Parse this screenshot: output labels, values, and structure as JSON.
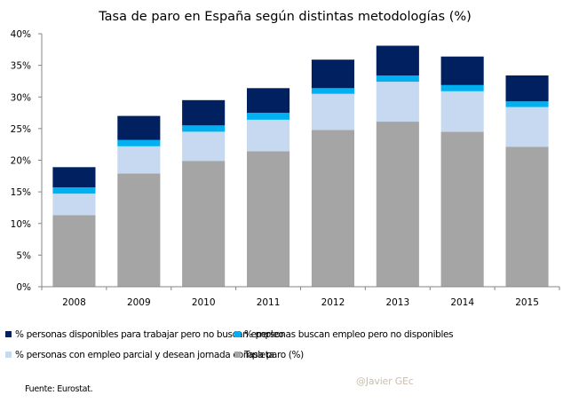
{
  "chart_data": {
    "type": "bar",
    "stacked": true,
    "title": "Tasa de paro en España según distintas metodologías (%)",
    "xlabel": "",
    "ylabel": "",
    "ylim": [
      0,
      40
    ],
    "yticks": [
      "0%",
      "5%",
      "10%",
      "15%",
      "20%",
      "25%",
      "30%",
      "35%",
      "40%"
    ],
    "ytick_values": [
      0,
      5,
      10,
      15,
      20,
      25,
      30,
      35,
      40
    ],
    "grid": false,
    "legend_position": "bottom",
    "categories": [
      "2008",
      "2009",
      "2010",
      "2011",
      "2012",
      "2013",
      "2014",
      "2015"
    ],
    "series": [
      {
        "name": "Tasa paro (%)",
        "color": "#a5a5a5",
        "values": [
          11.3,
          17.9,
          19.9,
          21.4,
          24.8,
          26.1,
          24.5,
          22.1
        ]
      },
      {
        "name": "% personas con empleo parcial y desean jornada completa",
        "color": "#c6d9f0",
        "values": [
          3.4,
          4.3,
          4.6,
          5.0,
          5.7,
          6.3,
          6.4,
          6.3
        ]
      },
      {
        "name": "% personas buscan empleo pero no disponibles",
        "color": "#00b0f0",
        "values": [
          1.0,
          1.0,
          1.0,
          1.1,
          0.9,
          1.0,
          1.0,
          0.9
        ]
      },
      {
        "name": "% personas disponibles para trabajar pero no buscan empleo",
        "color": "#002060",
        "values": [
          3.2,
          3.8,
          4.0,
          3.9,
          4.5,
          4.7,
          4.5,
          4.1
        ]
      }
    ]
  },
  "legend": {
    "items": [
      {
        "label": "% personas disponibles para trabajar pero no buscan empleo",
        "color": "#002060"
      },
      {
        "label": "% personas buscan empleo pero no disponibles",
        "color": "#00b0f0"
      },
      {
        "label": "% personas con empleo parcial y desean jornada completa",
        "color": "#c6d9f0"
      },
      {
        "label": "Tasa paro (%)",
        "color": "#a5a5a5"
      }
    ]
  },
  "footer": {
    "source": "Fuente: Eurostat.",
    "credit": "@Javier GEc"
  }
}
